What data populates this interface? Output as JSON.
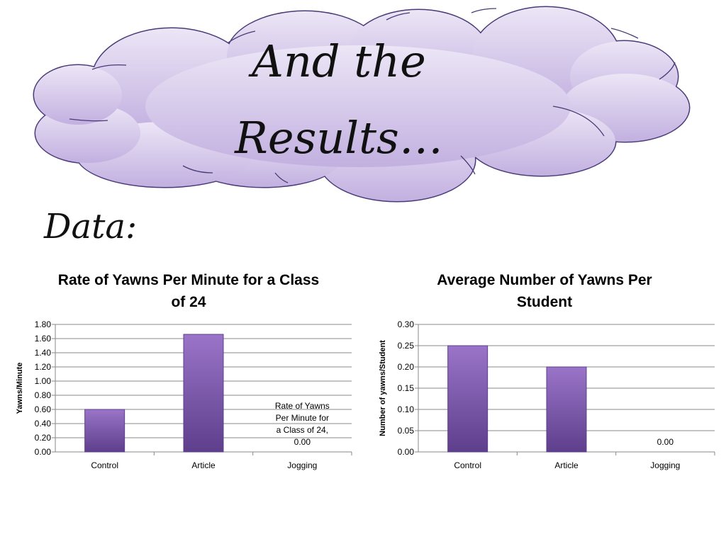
{
  "slide": {
    "title_lines": [
      "And the",
      "Results…"
    ],
    "data_heading": "Data:"
  },
  "colors": {
    "cloud_top": "#ece6f6",
    "cloud_bottom": "#c2b0e0",
    "cloud_stroke": "#4a3a78",
    "bar_light": "#9a74c8",
    "bar_dark": "#5e3f8c",
    "grid": "#8a8a8a"
  },
  "chart_data": [
    {
      "type": "bar",
      "title_lines": [
        "Rate of Yawns Per Minute for a Class",
        "of 24"
      ],
      "categories": [
        "Control",
        "Article",
        "Jogging"
      ],
      "values": [
        0.6,
        1.66,
        0.0
      ],
      "ylabel": "Yawns/Minute",
      "xlabel": "",
      "ylim": [
        0,
        1.8
      ],
      "yticks": [
        "0.00",
        "0.20",
        "0.40",
        "0.60",
        "0.80",
        "1.00",
        "1.20",
        "1.40",
        "1.60",
        "1.80"
      ],
      "data_labels": [
        {
          "category": "Jogging",
          "lines": [
            "Rate of Yawns",
            "Per Minute for",
            "a Class of 24,",
            "0.00"
          ]
        }
      ],
      "grid": true,
      "legend": "none"
    },
    {
      "type": "bar",
      "title_lines": [
        "Average Number of Yawns Per",
        "Student"
      ],
      "categories": [
        "Control",
        "Article",
        "Jogging"
      ],
      "values": [
        0.25,
        0.2,
        0.0
      ],
      "ylabel": "Number of yawns/Student",
      "xlabel": "",
      "ylim": [
        0,
        0.3
      ],
      "yticks": [
        "0.00",
        "0.05",
        "0.10",
        "0.15",
        "0.20",
        "0.25",
        "0.30"
      ],
      "data_labels": [
        {
          "category": "Jogging",
          "lines": [
            "0.00"
          ]
        }
      ],
      "grid": true,
      "legend": "none"
    }
  ]
}
